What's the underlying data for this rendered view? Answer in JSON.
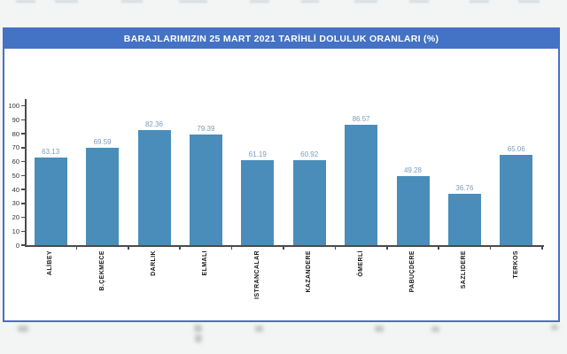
{
  "banner": {
    "background_color": "#4472c4",
    "text_color": "#ffffff"
  },
  "panel": {
    "border_color": "#4472c4",
    "background_color": "#ffffff"
  },
  "chart_data": {
    "type": "bar",
    "title": "BARAJLARIMIZIN 25 MART 2021 TARİHLİ DOLULUK ORANLARI (%)",
    "categories": [
      "ALİBEY",
      "B.ÇEKMECE",
      "DARLIK",
      "ELMALI",
      "ISTRANCALAR",
      "KAZANDERE",
      "ÖMERLİ",
      "PABUÇDERE",
      "SAZLIDERE",
      "TERKOS"
    ],
    "values": [
      63.13,
      69.59,
      82.36,
      79.39,
      61.19,
      60.92,
      86.57,
      49.28,
      36.76,
      65.06
    ],
    "value_labels": [
      "63.13",
      "69.59",
      "82.36",
      "79.39",
      "61.19",
      "60.92",
      "86.57",
      "49.28",
      "36.76",
      "65.06"
    ],
    "xlabel": "",
    "ylabel": "",
    "ylim": [
      0,
      100
    ],
    "ytick_step": 10,
    "ytick_labels": [
      "0",
      "10",
      "20",
      "30",
      "40",
      "50",
      "60",
      "70",
      "80",
      "90",
      "100"
    ],
    "grid": false,
    "legend": "none",
    "bar_color": "#4a8dba",
    "value_label_color": "#7c9cb8",
    "axis_color": "#4a4a4a",
    "tick_label_color": "#333333",
    "category_label_color": "#1a1a1a"
  }
}
